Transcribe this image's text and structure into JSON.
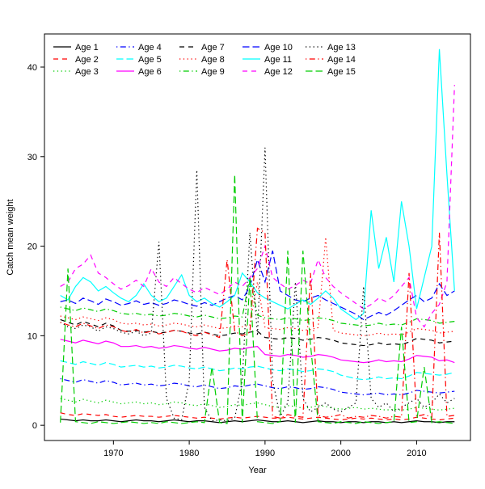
{
  "figure": {
    "xlabel": "Year",
    "ylabel": "Catch mean weight"
  },
  "chart_data": {
    "type": "line",
    "title": "",
    "xlabel": "Year",
    "ylabel": "Catch mean weight",
    "xlim": [
      1961,
      2017
    ],
    "ylim": [
      0,
      42
    ],
    "x_ticks": [
      1970,
      1980,
      1990,
      2000,
      2010
    ],
    "y_ticks": [
      0,
      10,
      20,
      30,
      40
    ],
    "grid": false,
    "legend_position": "top-left",
    "legend_columns": 5,
    "x": [
      1963,
      1964,
      1965,
      1966,
      1967,
      1968,
      1969,
      1970,
      1971,
      1972,
      1973,
      1974,
      1975,
      1976,
      1977,
      1978,
      1979,
      1980,
      1981,
      1982,
      1983,
      1984,
      1985,
      1986,
      1987,
      1988,
      1989,
      1990,
      1991,
      1992,
      1993,
      1994,
      1995,
      1996,
      1997,
      1998,
      1999,
      2000,
      2001,
      2002,
      2003,
      2004,
      2005,
      2006,
      2007,
      2008,
      2009,
      2010,
      2011,
      2012,
      2013,
      2014,
      2015
    ],
    "series": [
      {
        "name": "Age 1",
        "color": "#000000",
        "linestyle": "solid",
        "values": [
          0.7,
          0.6,
          0.5,
          0.6,
          0.5,
          0.5,
          0.6,
          0.5,
          0.4,
          0.5,
          0.6,
          0.5,
          0.5,
          0.4,
          0.5,
          0.6,
          0.5,
          0.4,
          0.5,
          0.5,
          0.4,
          0.3,
          0.4,
          0.5,
          0.4,
          0.5,
          0.6,
          0.5,
          0.4,
          0.4,
          0.5,
          0.4,
          0.3,
          0.4,
          0.5,
          0.4,
          0.4,
          0.3,
          0.4,
          0.4,
          0.3,
          0.4,
          0.4,
          0.3,
          0.4,
          0.3,
          0.4,
          0.5,
          0.4,
          0.4,
          0.3,
          0.4,
          0.4
        ]
      },
      {
        "name": "Age 2",
        "color": "#FF0000",
        "linestyle": "dashed",
        "values": [
          1.4,
          1.2,
          1.1,
          1.3,
          1.2,
          1.1,
          1.2,
          1.0,
          0.9,
          1.0,
          1.1,
          1.0,
          1.0,
          0.9,
          1.0,
          1.1,
          1.0,
          0.9,
          0.8,
          0.9,
          0.8,
          0.7,
          0.8,
          0.9,
          0.8,
          0.9,
          1.0,
          0.9,
          0.8,
          0.8,
          0.9,
          0.8,
          0.7,
          0.8,
          0.9,
          0.8,
          0.7,
          0.6,
          0.7,
          0.8,
          0.7,
          0.8,
          0.7,
          0.6,
          0.7,
          0.6,
          0.7,
          0.9,
          0.8,
          0.7,
          0.6,
          0.7,
          0.8
        ]
      },
      {
        "name": "Age 3",
        "color": "#00CD00",
        "linestyle": "dotted",
        "values": [
          3.0,
          2.8,
          2.6,
          2.9,
          2.7,
          2.5,
          2.8,
          2.6,
          2.4,
          2.5,
          2.6,
          2.4,
          2.5,
          2.3,
          2.4,
          2.6,
          2.5,
          2.3,
          2.2,
          2.4,
          2.2,
          2.0,
          2.1,
          2.3,
          2.2,
          2.4,
          2.5,
          2.3,
          2.1,
          2.0,
          2.2,
          2.1,
          1.9,
          2.0,
          2.2,
          2.1,
          1.9,
          1.8,
          1.9,
          2.0,
          1.8,
          1.9,
          1.8,
          1.7,
          1.8,
          1.7,
          1.8,
          2.0,
          1.9,
          1.8,
          1.7,
          1.8,
          1.9
        ]
      },
      {
        "name": "Age 4",
        "color": "#0000FF",
        "linestyle": "dotdash",
        "values": [
          5.2,
          5.0,
          4.8,
          5.1,
          4.9,
          4.7,
          5.0,
          4.8,
          4.5,
          4.6,
          4.7,
          4.5,
          4.6,
          4.4,
          4.5,
          4.7,
          4.6,
          4.4,
          4.3,
          4.5,
          4.3,
          4.1,
          4.2,
          4.4,
          4.3,
          4.5,
          4.6,
          4.4,
          4.2,
          4.1,
          4.3,
          4.2,
          4.0,
          4.1,
          4.3,
          4.2,
          4.0,
          3.7,
          3.6,
          3.5,
          3.4,
          3.5,
          3.6,
          3.4,
          3.5,
          3.4,
          3.6,
          3.9,
          3.8,
          3.7,
          3.6,
          3.7,
          3.8
        ]
      },
      {
        "name": "Age 5",
        "color": "#00FFFF",
        "linestyle": "longdash",
        "values": [
          7.2,
          7.0,
          6.8,
          7.1,
          6.9,
          6.7,
          7.0,
          6.8,
          6.5,
          6.6,
          6.7,
          6.5,
          6.6,
          6.4,
          6.5,
          6.7,
          6.6,
          6.4,
          6.3,
          6.5,
          6.3,
          6.1,
          6.2,
          6.4,
          6.3,
          6.5,
          6.6,
          6.4,
          6.2,
          6.1,
          6.3,
          6.2,
          6.0,
          6.1,
          6.3,
          6.2,
          6.0,
          5.6,
          5.4,
          5.2,
          5.1,
          5.2,
          5.4,
          5.2,
          5.3,
          5.2,
          5.5,
          5.9,
          5.8,
          5.7,
          5.6,
          5.7,
          5.9
        ]
      },
      {
        "name": "Age 6",
        "color": "#FF00FF",
        "linestyle": "solid",
        "values": [
          9.6,
          9.4,
          9.2,
          9.5,
          9.3,
          9.1,
          9.4,
          9.2,
          8.8,
          8.8,
          8.9,
          8.7,
          8.8,
          8.6,
          8.7,
          8.9,
          8.8,
          8.6,
          8.5,
          8.7,
          8.5,
          8.3,
          8.4,
          8.6,
          8.5,
          8.7,
          8.8,
          7.9,
          7.8,
          7.7,
          7.9,
          7.8,
          7.6,
          7.7,
          7.9,
          7.8,
          7.6,
          7.3,
          7.2,
          7.1,
          7.0,
          7.1,
          7.3,
          7.1,
          7.2,
          7.1,
          7.4,
          7.8,
          7.7,
          7.6,
          7.2,
          7.3,
          7.0
        ]
      },
      {
        "name": "Age 7",
        "color": "#000000",
        "linestyle": "dashed",
        "values": [
          11.8,
          11.5,
          11.2,
          11.6,
          11.3,
          11.0,
          11.4,
          11.1,
          10.6,
          10.5,
          10.6,
          10.4,
          10.5,
          10.3,
          10.4,
          10.6,
          10.5,
          10.3,
          10.2,
          10.4,
          10.2,
          10.0,
          10.1,
          10.3,
          10.2,
          10.4,
          10.5,
          9.8,
          9.7,
          9.6,
          9.8,
          9.7,
          9.5,
          9.6,
          9.8,
          9.7,
          9.5,
          9.2,
          9.1,
          9.0,
          8.9,
          9.0,
          9.2,
          9.0,
          9.1,
          9.0,
          9.3,
          9.7,
          9.6,
          9.5,
          9.2,
          9.3,
          9.4
        ]
      },
      {
        "name": "Age 8",
        "color": "#FF0000",
        "linestyle": "dotted",
        "values": [
          12.2,
          12.0,
          11.8,
          12.1,
          11.9,
          11.7,
          12.0,
          11.8,
          11.4,
          11.3,
          11.4,
          11.2,
          11.3,
          11.1,
          11.2,
          11.4,
          11.3,
          11.1,
          11.0,
          11.2,
          11.0,
          10.8,
          10.9,
          11.1,
          11.0,
          11.2,
          16.0,
          10.9,
          10.8,
          10.7,
          10.9,
          10.8,
          10.6,
          10.7,
          10.9,
          21.0,
          10.6,
          10.3,
          10.2,
          10.1,
          10.0,
          10.1,
          10.3,
          10.1,
          10.2,
          10.1,
          10.4,
          10.8,
          10.7,
          10.6,
          10.3,
          10.4,
          10.5
        ]
      },
      {
        "name": "Age 9",
        "color": "#00CD00",
        "linestyle": "dotdash",
        "values": [
          13.2,
          13.0,
          12.8,
          13.1,
          12.9,
          12.7,
          13.0,
          12.8,
          12.5,
          12.4,
          12.5,
          12.3,
          12.4,
          12.2,
          12.3,
          12.5,
          12.4,
          12.2,
          12.1,
          12.3,
          12.1,
          11.9,
          12.0,
          12.2,
          12.1,
          16.5,
          12.3,
          12.0,
          11.9,
          11.8,
          12.0,
          11.9,
          11.7,
          11.8,
          12.0,
          11.9,
          11.7,
          11.4,
          11.3,
          11.2,
          11.1,
          11.2,
          11.4,
          11.2,
          11.3,
          11.2,
          11.5,
          11.9,
          11.8,
          11.7,
          11.4,
          11.5,
          11.6
        ]
      },
      {
        "name": "Age 10",
        "color": "#0000FF",
        "linestyle": "longdash",
        "values": [
          13.8,
          14.0,
          13.6,
          14.2,
          13.9,
          13.5,
          14.1,
          13.8,
          13.4,
          13.6,
          13.9,
          13.5,
          13.7,
          13.4,
          13.6,
          14.0,
          13.8,
          13.5,
          13.3,
          13.7,
          13.4,
          13.8,
          14.2,
          14.5,
          14.0,
          15.5,
          18.5,
          16.0,
          19.5,
          15.0,
          14.5,
          14.0,
          13.8,
          14.2,
          14.5,
          14.0,
          13.6,
          13.2,
          12.8,
          12.4,
          11.8,
          12.2,
          12.6,
          12.3,
          12.8,
          13.4,
          14.0,
          14.5,
          13.8,
          14.2,
          15.8,
          14.5,
          15.0
        ]
      },
      {
        "name": "Age 11",
        "color": "#00FFFF",
        "linestyle": "solid",
        "values": [
          14.5,
          14.0,
          15.5,
          16.5,
          16.0,
          15.0,
          15.5,
          14.8,
          14.2,
          13.8,
          14.5,
          15.8,
          14.5,
          13.8,
          14.2,
          15.5,
          16.8,
          14.5,
          13.8,
          14.2,
          13.6,
          13.2,
          13.8,
          14.5,
          17.0,
          16.0,
          14.8,
          14.2,
          13.8,
          13.4,
          13.0,
          13.5,
          14.0,
          13.5,
          14.2,
          15.0,
          14.2,
          13.0,
          12.4,
          11.8,
          12.5,
          24.0,
          17.5,
          21.0,
          16.0,
          25.0,
          20.0,
          13.0,
          16.5,
          20.0,
          42.0,
          28.0,
          15.0
        ]
      },
      {
        "name": "Age 12",
        "color": "#FF00FF",
        "linestyle": "dashed",
        "values": [
          15.5,
          16.0,
          17.5,
          18.0,
          19.0,
          17.0,
          16.5,
          15.8,
          15.2,
          15.6,
          16.2,
          15.5,
          17.5,
          16.0,
          15.5,
          16.5,
          15.8,
          15.2,
          14.8,
          15.4,
          15.0,
          14.6,
          15.2,
          16.0,
          15.5,
          16.5,
          17.5,
          20.0,
          16.5,
          15.8,
          15.2,
          15.6,
          16.2,
          15.8,
          18.5,
          16.5,
          15.5,
          14.8,
          14.2,
          13.6,
          13.0,
          13.5,
          14.2,
          13.8,
          14.5,
          15.5,
          16.5,
          12.0,
          11.0,
          12.5,
          13.5,
          16.0,
          38.0
        ]
      },
      {
        "name": "Age 13",
        "color": "#000000",
        "linestyle": "dotted",
        "values": [
          11.5,
          11.0,
          10.8,
          11.2,
          11.0,
          10.5,
          11.0,
          10.8,
          10.4,
          10.2,
          10.5,
          10.0,
          10.3,
          20.5,
          3.0,
          0.8,
          0.6,
          5.0,
          28.5,
          2.0,
          0.5,
          0.6,
          0.5,
          0.8,
          5.0,
          21.5,
          10.0,
          31.0,
          5.0,
          1.0,
          2.5,
          16.0,
          3.0,
          1.5,
          2.0,
          2.5,
          1.8,
          1.5,
          2.0,
          2.5,
          15.5,
          3.0,
          2.0,
          2.5,
          1.5,
          2.0,
          2.5,
          3.0,
          2.0,
          2.5,
          3.5,
          2.5,
          3.0
        ]
      },
      {
        "name": "Age 14",
        "color": "#FF0000",
        "linestyle": "dotdash",
        "values": [
          11.5,
          11.2,
          11.0,
          11.4,
          11.1,
          10.8,
          11.2,
          11.0,
          10.6,
          10.4,
          10.7,
          10.3,
          10.5,
          10.2,
          10.4,
          10.6,
          10.5,
          10.2,
          10.0,
          10.4,
          10.1,
          9.8,
          18.5,
          10.5,
          10.0,
          10.4,
          22.0,
          21.5,
          1.0,
          0.8,
          1.2,
          1.0,
          0.9,
          17.0,
          1.1,
          0.9,
          1.0,
          1.2,
          0.8,
          1.0,
          0.9,
          1.1,
          1.0,
          0.8,
          1.0,
          0.9,
          17.0,
          1.0,
          1.2,
          0.9,
          21.5,
          1.0,
          1.1
        ]
      },
      {
        "name": "Age 15",
        "color": "#00CD00",
        "linestyle": "longdash",
        "values": [
          0.3,
          17.5,
          0.4,
          0.3,
          0.2,
          0.4,
          0.3,
          0.2,
          0.3,
          0.4,
          0.3,
          0.2,
          0.3,
          0.2,
          0.4,
          0.3,
          0.2,
          0.3,
          0.4,
          0.3,
          6.5,
          0.3,
          0.2,
          28.0,
          0.3,
          16.5,
          0.4,
          0.3,
          0.2,
          0.4,
          19.5,
          0.3,
          19.5,
          9.0,
          0.4,
          0.3,
          0.2,
          0.4,
          0.3,
          0.2,
          0.4,
          0.3,
          0.2,
          0.3,
          0.4,
          11.0,
          0.3,
          0.4,
          6.5,
          0.3,
          0.4,
          0.3,
          0.2
        ]
      }
    ]
  }
}
